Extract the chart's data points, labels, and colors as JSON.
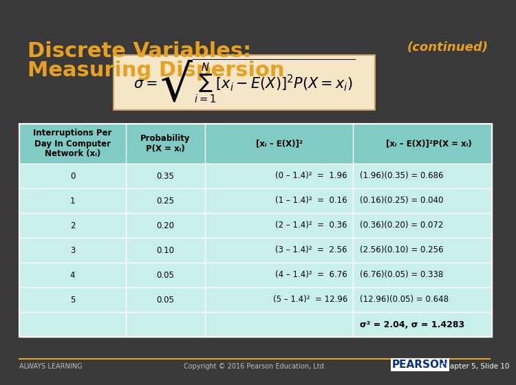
{
  "title_line1": "Discrete Variables:",
  "title_line2": "Measuring Dispersion",
  "title_color": "#E8A020",
  "continued_text": "(continued)",
  "continued_color": "#E8A020",
  "bg_color": "#3a3a3a",
  "formula_bg": "#F5E6C8",
  "formula_border": "#C8A060",
  "table_header_bg": "#80CBC4",
  "table_row_bg": "#C8EFE8",
  "table_border_color": "#FFFFFF",
  "col_headers": [
    "Interruptions Per\nDay In Computer\nNetwork (xᵢ)",
    "Probability\nP(X = xᵢ)",
    "[xᵢ – E(X)]²",
    "[xᵢ – E(X)]²P(X = xᵢ)"
  ],
  "rows": [
    [
      "0",
      "0.35",
      "(0 – 1.4)²  =  1.96",
      "(1.96)(0.35) = 0.686"
    ],
    [
      "1",
      "0.25",
      "(1 – 1.4)²  =  0.16",
      "(0.16)(0.25) = 0.040"
    ],
    [
      "2",
      "0.20",
      "(2 – 1.4)²  =  0.36",
      "(0.36)(0.20) = 0.072"
    ],
    [
      "3",
      "0.10",
      "(3 – 1.4)²  =  2.56",
      "(2.56)(0.10) = 0.256"
    ],
    [
      "4",
      "0.05",
      "(4 – 1.4)²  =  6.76",
      "(6.76)(0.05) = 0.338"
    ],
    [
      "5",
      "0.05",
      "(5 – 1.4)²  = 12.96",
      "(12.96)(0.05) = 0.648"
    ]
  ],
  "summary_row": [
    "σ² = 2.04, σ = 1.4283"
  ],
  "footer_left": "ALWAYS LEARNING",
  "footer_center": "Copyright © 2016 Pearson Education, Ltd.",
  "footer_right": "Chapter 5, Slide 10",
  "pearson_text": "PEARSON"
}
